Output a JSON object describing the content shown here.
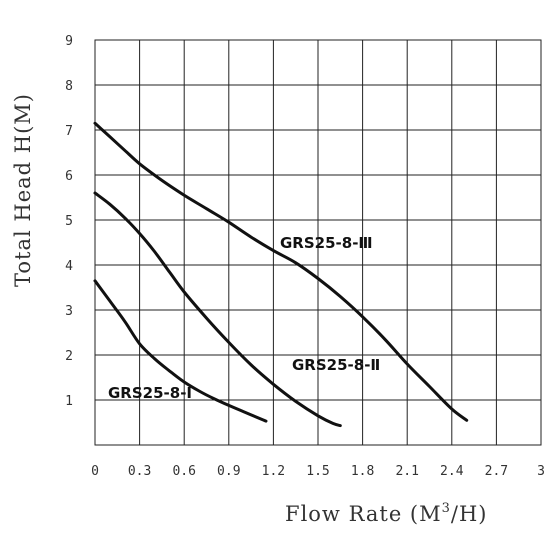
{
  "chart_data": {
    "type": "line",
    "xlabel_main": "Flow Rate (M",
    "xlabel_sup": "3",
    "xlabel_tail": "/H)",
    "ylabel": "Total Head H(M)",
    "xlim": [
      0,
      3
    ],
    "ylim": [
      0,
      9
    ],
    "x_ticks": [
      "0",
      "0.3",
      "0.6",
      "0.9",
      "1.2",
      "1.5",
      "1.8",
      "2.1",
      "2.4",
      "2.7",
      "3"
    ],
    "y_ticks": [
      "1",
      "2",
      "3",
      "4",
      "5",
      "6",
      "7",
      "8",
      "9"
    ],
    "grid": true,
    "colors": {
      "line": "#111111",
      "grid": "#222222",
      "text": "#333333"
    },
    "series": [
      {
        "name": "GRS25-8-Ⅲ",
        "x": [
          0,
          0.1,
          0.2,
          0.3,
          0.45,
          0.6,
          0.75,
          0.9,
          1.05,
          1.2,
          1.35,
          1.5,
          1.65,
          1.8,
          1.95,
          2.1,
          2.25,
          2.4,
          2.5
        ],
        "y": [
          7.15,
          6.85,
          6.55,
          6.25,
          5.88,
          5.55,
          5.25,
          4.95,
          4.62,
          4.32,
          4.05,
          3.7,
          3.3,
          2.85,
          2.35,
          1.8,
          1.3,
          0.8,
          0.55
        ]
      },
      {
        "name": "GRS25-8-Ⅱ",
        "x": [
          0,
          0.1,
          0.2,
          0.3,
          0.4,
          0.5,
          0.6,
          0.75,
          0.9,
          1.05,
          1.2,
          1.35,
          1.5,
          1.6,
          1.65
        ],
        "y": [
          5.6,
          5.35,
          5.05,
          4.7,
          4.3,
          3.85,
          3.4,
          2.82,
          2.28,
          1.78,
          1.35,
          0.97,
          0.65,
          0.48,
          0.43
        ]
      },
      {
        "name": "GRS25-8-Ⅰ",
        "x": [
          0,
          0.1,
          0.2,
          0.3,
          0.4,
          0.5,
          0.6,
          0.7,
          0.8,
          0.9,
          1.0,
          1.1,
          1.15
        ],
        "y": [
          3.65,
          3.2,
          2.75,
          2.25,
          1.92,
          1.65,
          1.4,
          1.2,
          1.03,
          0.88,
          0.74,
          0.6,
          0.53
        ]
      }
    ]
  }
}
